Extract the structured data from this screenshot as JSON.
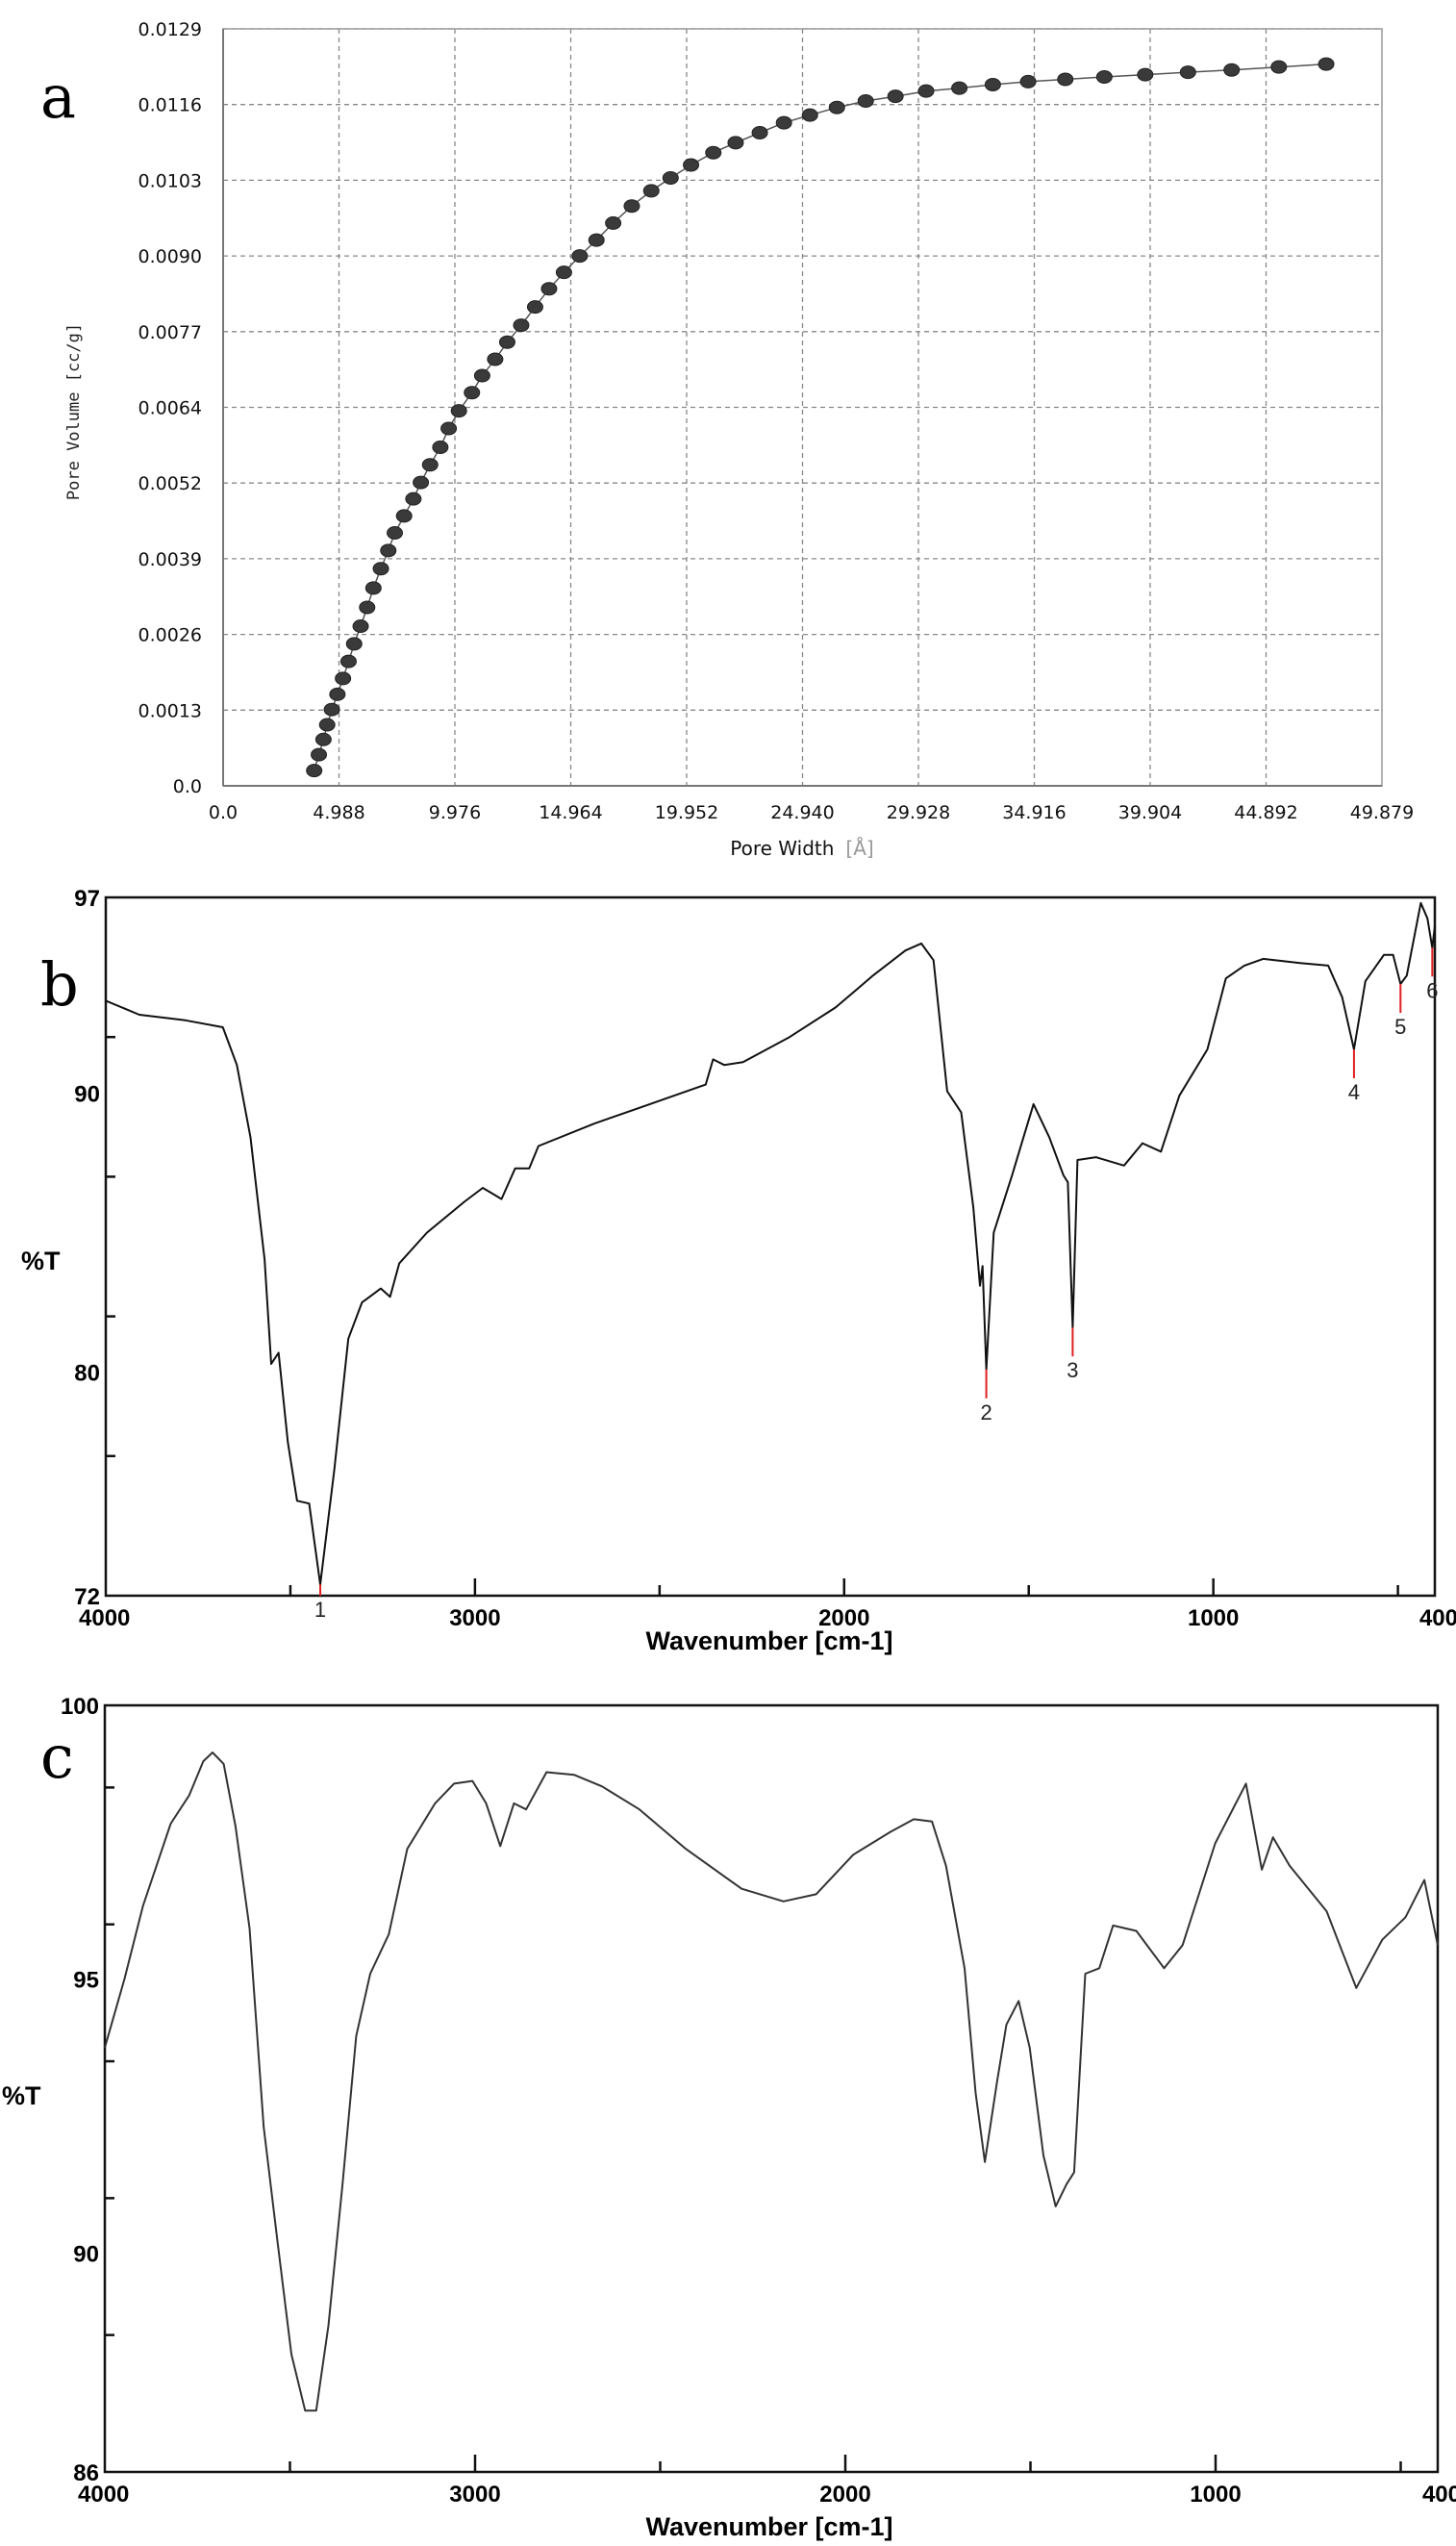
{
  "chart_data": [
    {
      "panel": "a",
      "type": "line",
      "markers": true,
      "xlabel": "Pore Width",
      "xlabel_unit": "[Å]",
      "ylabel": "Pore Volume  [cc/g]",
      "xlim": [
        0,
        49.879
      ],
      "ylim": [
        0,
        0.0129
      ],
      "xticks": [
        "0.0",
        "4.988",
        "9.976",
        "14.964",
        "19.952",
        "24.940",
        "29.928",
        "34.916",
        "39.904",
        "44.892",
        "49.879"
      ],
      "yticks": [
        "0.0",
        "0.0013",
        "0.0026",
        "0.0039",
        "0.0052",
        "0.0064",
        "0.0077",
        "0.0090",
        "0.0103",
        "0.0116",
        "0.0129"
      ],
      "grid": true,
      "colors": {
        "line": "#555555",
        "marker": "#3a3a3a",
        "grid": "#888888"
      },
      "x": [
        3.92,
        4.12,
        4.32,
        4.48,
        4.68,
        4.92,
        5.16,
        5.4,
        5.64,
        5.92,
        6.2,
        6.47,
        6.79,
        7.11,
        7.39,
        7.79,
        8.19,
        8.51,
        8.91,
        9.35,
        9.71,
        10.15,
        10.71,
        11.15,
        11.71,
        12.23,
        12.83,
        13.43,
        14.03,
        14.67,
        15.35,
        16.07,
        16.79,
        17.59,
        18.43,
        19.26,
        20.14,
        21.1,
        22.06,
        23.1,
        24.14,
        25.26,
        26.42,
        27.66,
        28.94,
        30.26,
        31.69,
        33.13,
        34.65,
        36.25,
        37.93,
        39.69,
        41.53,
        43.41,
        45.44,
        47.48
      ],
      "y": [
        0.00026,
        0.00053,
        0.00079,
        0.00104,
        0.0013,
        0.00156,
        0.00183,
        0.00212,
        0.00242,
        0.00272,
        0.00304,
        0.00337,
        0.0037,
        0.00401,
        0.00431,
        0.0046,
        0.00489,
        0.00517,
        0.00547,
        0.00577,
        0.00609,
        0.00639,
        0.0067,
        0.00699,
        0.00727,
        0.00756,
        0.00785,
        0.00816,
        0.00847,
        0.00875,
        0.00903,
        0.0093,
        0.00959,
        0.00988,
        0.01014,
        0.01036,
        0.01058,
        0.01079,
        0.01096,
        0.01113,
        0.0113,
        0.01143,
        0.01156,
        0.01167,
        0.01175,
        0.01184,
        0.01189,
        0.01195,
        0.012,
        0.01204,
        0.01208,
        0.01212,
        0.01216,
        0.0122,
        0.01225,
        0.0123
      ]
    },
    {
      "panel": "b",
      "type": "line",
      "xlabel": "Wavenumber [cm-1]",
      "ylabel": "%T",
      "xlim": [
        4000,
        400
      ],
      "ylim": [
        72,
        97
      ],
      "xticks": [
        "4000",
        "3000",
        "2000",
        "1000",
        "400"
      ],
      "yticks": [
        "97",
        "90",
        "80",
        "72"
      ],
      "grid": false,
      "colors": {
        "line": "#111111",
        "peak_marker": "#e02020"
      },
      "x": [
        4000,
        3909,
        3784,
        3683,
        3645,
        3608,
        3570,
        3552,
        3532,
        3507,
        3482,
        3449,
        3419,
        3381,
        3343,
        3306,
        3255,
        3230,
        3205,
        3130,
        3029,
        2979,
        2928,
        2891,
        2853,
        2828,
        2677,
        2526,
        2375,
        2355,
        2325,
        2274,
        2148,
        2023,
        1922,
        1834,
        1791,
        1758,
        1721,
        1683,
        1650,
        1632,
        1625,
        1615,
        1595,
        1545,
        1519,
        1487,
        1444,
        1406,
        1394,
        1381,
        1368,
        1318,
        1242,
        1192,
        1142,
        1092,
        1016,
        966,
        916,
        865,
        765,
        689,
        651,
        619,
        588,
        538,
        513,
        493,
        476,
        438,
        420,
        407,
        400
      ],
      "y": [
        93.3,
        92.8,
        92.6,
        92.35,
        91.0,
        88.4,
        84.05,
        80.3,
        80.7,
        77.5,
        75.4,
        75.3,
        72.4,
        76.5,
        81.2,
        82.5,
        83.0,
        82.7,
        83.9,
        85.0,
        86.1,
        86.6,
        86.2,
        87.3,
        87.3,
        88.1,
        88.9,
        89.6,
        90.3,
        91.2,
        91.0,
        91.1,
        92.0,
        93.06,
        94.2,
        95.1,
        95.35,
        94.75,
        90.06,
        89.3,
        85.9,
        83.1,
        83.8,
        80.1,
        85.0,
        87.05,
        88.2,
        89.6,
        88.4,
        87.05,
        86.8,
        81.6,
        87.6,
        87.7,
        87.4,
        88.2,
        87.9,
        89.9,
        91.56,
        94.1,
        94.56,
        94.8,
        94.65,
        94.56,
        93.43,
        91.56,
        94.0,
        94.94,
        94.94,
        93.9,
        94.2,
        96.8,
        96.25,
        95.2,
        95.97
      ],
      "peaks": [
        {
          "label": "1",
          "x": 3419
        },
        {
          "label": "2",
          "x": 1615
        },
        {
          "label": "3",
          "x": 1381
        },
        {
          "label": "4",
          "x": 619
        },
        {
          "label": "5",
          "x": 493
        },
        {
          "label": "6",
          "x": 407
        }
      ]
    },
    {
      "panel": "c",
      "type": "line",
      "xlabel": "Wavenumber [cm-1]",
      "ylabel": "%T",
      "xlim": [
        4000,
        400
      ],
      "ylim": [
        86,
        100
      ],
      "xticks": [
        "4000",
        "3000",
        "2000",
        "1000",
        "400"
      ],
      "yticks": [
        "100",
        "95",
        "90",
        "86"
      ],
      "grid": false,
      "colors": {
        "line": "#333333"
      },
      "x": [
        4000,
        3947,
        3897,
        3822,
        3772,
        3734,
        3709,
        3679,
        3647,
        3609,
        3571,
        3534,
        3496,
        3459,
        3429,
        3396,
        3358,
        3321,
        3283,
        3233,
        3183,
        3108,
        3057,
        3007,
        2970,
        2932,
        2895,
        2862,
        2807,
        2732,
        2657,
        2556,
        2431,
        2280,
        2167,
        2079,
        1979,
        1878,
        1815,
        1766,
        1728,
        1678,
        1648,
        1623,
        1590,
        1565,
        1532,
        1502,
        1465,
        1432,
        1402,
        1382,
        1352,
        1314,
        1277,
        1214,
        1139,
        1089,
        1001,
        918,
        875,
        845,
        800,
        700,
        620,
        550,
        487,
        436,
        400
      ],
      "y": [
        93.75,
        95.0,
        96.34,
        97.84,
        98.36,
        98.98,
        99.14,
        98.93,
        97.79,
        95.93,
        92.3,
        90.23,
        88.15,
        87.12,
        87.12,
        88.67,
        91.26,
        93.96,
        95.1,
        95.82,
        97.38,
        98.21,
        98.57,
        98.62,
        98.21,
        97.43,
        98.21,
        98.1,
        98.78,
        98.73,
        98.52,
        98.1,
        97.38,
        96.65,
        96.42,
        96.55,
        97.27,
        97.69,
        97.92,
        97.88,
        97.07,
        95.2,
        92.92,
        91.66,
        93.13,
        94.17,
        94.6,
        93.75,
        91.78,
        90.85,
        91.26,
        91.47,
        95.1,
        95.2,
        95.98,
        95.88,
        95.2,
        95.62,
        97.48,
        98.57,
        97.0,
        97.59,
        97.07,
        96.24,
        94.84,
        95.72,
        96.13,
        96.81,
        95.62
      ]
    }
  ]
}
